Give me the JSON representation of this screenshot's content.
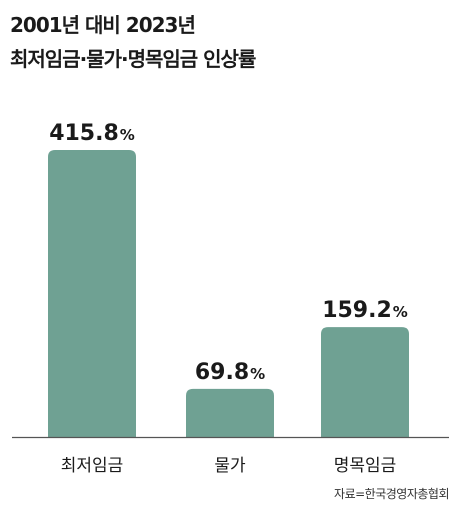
{
  "title_lines": [
    "2001년 대비 2023년",
    "최저임금·물가·명목임금 인상률"
  ],
  "source": "자료=한국경영자총협회",
  "colors": {
    "bar": "#6fa193",
    "axis": "#555555",
    "text": "#1a1a1a"
  },
  "chart_data": {
    "type": "bar",
    "categories": [
      "최저임금",
      "물가",
      "명목임금"
    ],
    "values": [
      415.8,
      69.8,
      159.2
    ],
    "value_labels": [
      "415.8",
      "69.8",
      "159.2"
    ],
    "value_unit": "%",
    "title": "2001년 대비 2023년 최저임금·물가·명목임금 인상률",
    "xlabel": "",
    "ylabel": "",
    "ylim": [
      0,
      415.8
    ],
    "grid": false,
    "legend": "none"
  }
}
